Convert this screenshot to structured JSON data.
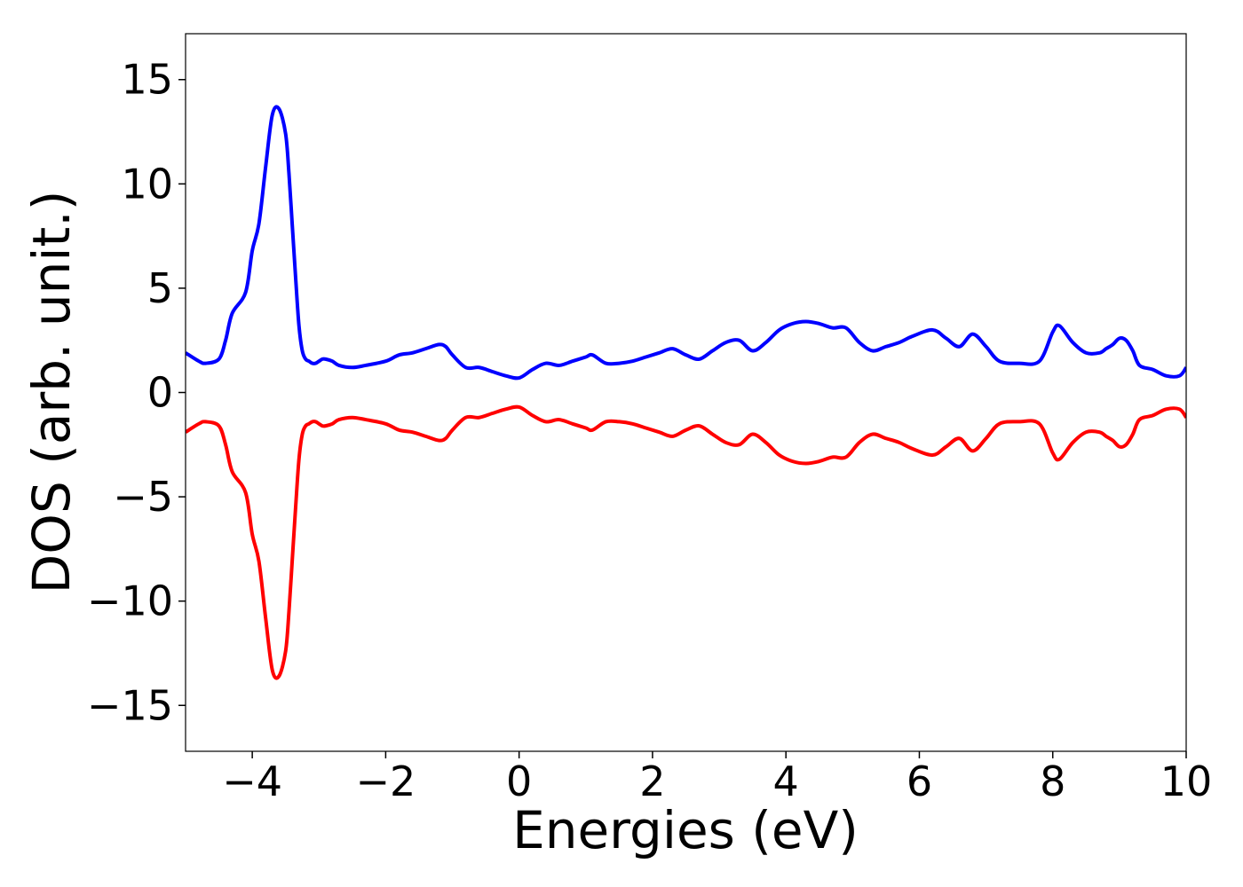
{
  "chart_data": {
    "type": "line",
    "title": "",
    "xlabel": "Energies (eV)",
    "ylabel": "DOS (arb. unit.)",
    "xlim": [
      -5,
      10
    ],
    "ylim": [
      -17.2,
      17.2
    ],
    "xticks": [
      -4,
      -2,
      0,
      2,
      4,
      6,
      8,
      10
    ],
    "xtick_labels": [
      "−4",
      "−2",
      "0",
      "2",
      "4",
      "6",
      "8",
      "10"
    ],
    "yticks": [
      15,
      10,
      5,
      0,
      -5,
      -10,
      -15
    ],
    "ytick_labels": [
      "15",
      "10",
      "5",
      "0",
      "−5",
      "−10",
      "−15"
    ],
    "grid": false,
    "legend": false,
    "series": [
      {
        "color": "#0000ff",
        "x": [
          -5.0,
          -4.8,
          -4.7,
          -4.5,
          -4.4,
          -4.3,
          -4.1,
          -4.0,
          -3.9,
          -3.8,
          -3.7,
          -3.6,
          -3.5,
          -3.45,
          -3.4,
          -3.35,
          -3.3,
          -3.25,
          -3.2,
          -3.15,
          -3.1,
          -3.05,
          -3.0,
          -2.95,
          -2.9,
          -2.8,
          -2.7,
          -2.5,
          -2.3,
          -2.0,
          -1.8,
          -1.6,
          -1.4,
          -1.2,
          -1.1,
          -1.0,
          -0.8,
          -0.6,
          -0.4,
          -0.2,
          0.0,
          0.2,
          0.4,
          0.6,
          0.8,
          1.0,
          1.1,
          1.3,
          1.5,
          1.7,
          1.9,
          2.1,
          2.3,
          2.5,
          2.7,
          2.9,
          3.1,
          3.3,
          3.5,
          3.7,
          3.9,
          4.1,
          4.3,
          4.5,
          4.7,
          4.9,
          5.1,
          5.3,
          5.5,
          5.7,
          5.9,
          6.2,
          6.4,
          6.6,
          6.8,
          7.0,
          7.2,
          7.5,
          7.8,
          8.0,
          8.1,
          8.3,
          8.5,
          8.7,
          8.8,
          8.9,
          9.0,
          9.1,
          9.2,
          9.3,
          9.5,
          9.7,
          9.9,
          10.0
        ],
        "y": [
          1.9,
          1.5,
          1.4,
          1.6,
          2.5,
          3.8,
          4.8,
          6.8,
          8.1,
          10.8,
          13.3,
          13.6,
          12.4,
          10.5,
          8.0,
          5.5,
          3.2,
          2.0,
          1.6,
          1.5,
          1.4,
          1.4,
          1.5,
          1.6,
          1.6,
          1.5,
          1.3,
          1.2,
          1.3,
          1.5,
          1.8,
          1.9,
          2.1,
          2.3,
          2.2,
          1.8,
          1.2,
          1.2,
          1.0,
          0.8,
          0.7,
          1.1,
          1.4,
          1.3,
          1.5,
          1.7,
          1.8,
          1.4,
          1.4,
          1.5,
          1.7,
          1.9,
          2.1,
          1.8,
          1.6,
          2.0,
          2.4,
          2.5,
          2.0,
          2.4,
          3.0,
          3.3,
          3.4,
          3.3,
          3.1,
          3.1,
          2.4,
          2.0,
          2.2,
          2.4,
          2.7,
          3.0,
          2.6,
          2.2,
          2.8,
          2.2,
          1.5,
          1.4,
          1.5,
          2.9,
          3.2,
          2.4,
          1.9,
          1.9,
          2.1,
          2.3,
          2.6,
          2.5,
          2.0,
          1.3,
          1.1,
          0.8,
          0.8,
          1.2
        ]
      },
      {
        "color": "#ff0000",
        "x": [
          -5.0,
          -4.8,
          -4.7,
          -4.5,
          -4.4,
          -4.3,
          -4.1,
          -4.0,
          -3.9,
          -3.8,
          -3.7,
          -3.6,
          -3.5,
          -3.45,
          -3.4,
          -3.35,
          -3.3,
          -3.25,
          -3.2,
          -3.15,
          -3.1,
          -3.05,
          -3.0,
          -2.95,
          -2.9,
          -2.8,
          -2.7,
          -2.5,
          -2.3,
          -2.0,
          -1.8,
          -1.6,
          -1.4,
          -1.2,
          -1.1,
          -1.0,
          -0.8,
          -0.6,
          -0.4,
          -0.2,
          0.0,
          0.2,
          0.4,
          0.6,
          0.8,
          1.0,
          1.1,
          1.3,
          1.5,
          1.7,
          1.9,
          2.1,
          2.3,
          2.5,
          2.7,
          2.9,
          3.1,
          3.3,
          3.5,
          3.7,
          3.9,
          4.1,
          4.3,
          4.5,
          4.7,
          4.9,
          5.1,
          5.3,
          5.5,
          5.7,
          5.9,
          6.2,
          6.4,
          6.6,
          6.8,
          7.0,
          7.2,
          7.5,
          7.8,
          8.0,
          8.1,
          8.3,
          8.5,
          8.7,
          8.8,
          8.9,
          9.0,
          9.1,
          9.2,
          9.3,
          9.5,
          9.7,
          9.9,
          10.0
        ],
        "y": [
          -1.9,
          -1.5,
          -1.4,
          -1.6,
          -2.5,
          -3.8,
          -4.8,
          -6.8,
          -8.1,
          -10.8,
          -13.3,
          -13.6,
          -12.4,
          -10.5,
          -8.0,
          -5.5,
          -3.2,
          -2.0,
          -1.6,
          -1.5,
          -1.4,
          -1.4,
          -1.5,
          -1.6,
          -1.6,
          -1.5,
          -1.3,
          -1.2,
          -1.3,
          -1.5,
          -1.8,
          -1.9,
          -2.1,
          -2.3,
          -2.2,
          -1.8,
          -1.2,
          -1.2,
          -1.0,
          -0.8,
          -0.7,
          -1.1,
          -1.4,
          -1.3,
          -1.5,
          -1.7,
          -1.8,
          -1.4,
          -1.4,
          -1.5,
          -1.7,
          -1.9,
          -2.1,
          -1.8,
          -1.6,
          -2.0,
          -2.4,
          -2.5,
          -2.0,
          -2.4,
          -3.0,
          -3.3,
          -3.4,
          -3.3,
          -3.1,
          -3.1,
          -2.4,
          -2.0,
          -2.2,
          -2.4,
          -2.7,
          -3.0,
          -2.6,
          -2.2,
          -2.8,
          -2.2,
          -1.5,
          -1.4,
          -1.5,
          -2.9,
          -3.2,
          -2.4,
          -1.9,
          -1.9,
          -2.1,
          -2.3,
          -2.6,
          -2.5,
          -2.0,
          -1.3,
          -1.1,
          -0.8,
          -0.8,
          -1.2
        ]
      }
    ]
  }
}
